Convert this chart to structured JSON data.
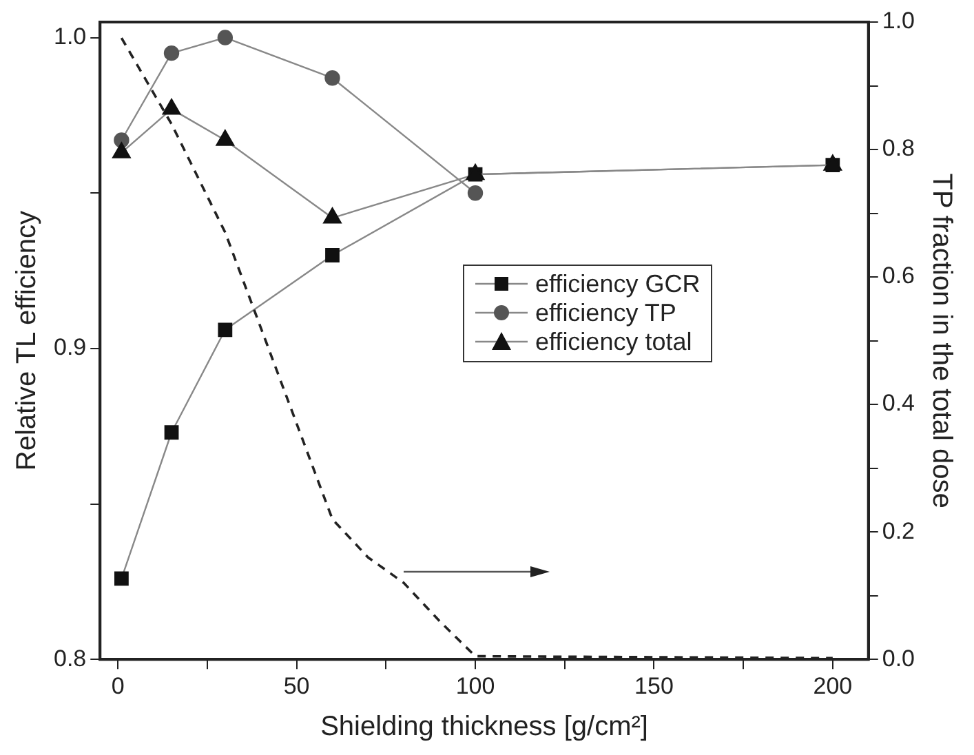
{
  "chart_data": {
    "type": "line",
    "xlabel": "Shielding thickness [g/cm²]",
    "ylabel": "Relative TL efficiency",
    "y2label": "TP fraction in the total dose",
    "xlim": [
      -5,
      210
    ],
    "xticks": [
      0,
      {
        "value": 25,
        "label": null
      },
      50,
      {
        "value": 75,
        "label": null
      },
      100,
      {
        "value": 125,
        "label": null
      },
      150,
      {
        "value": 175,
        "label": null
      },
      200
    ],
    "ylim": [
      0.8,
      1.005
    ],
    "yticks": [
      {
        "value": 0.8,
        "label": "0.8"
      },
      {
        "value": 0.85,
        "label": null
      },
      {
        "value": 0.9,
        "label": "0.9"
      },
      {
        "value": 0.95,
        "label": null
      },
      {
        "value": 1.0,
        "label": "1.0"
      }
    ],
    "y2lim": [
      0,
      1
    ],
    "y2ticks": [
      {
        "value": 0,
        "label": "0.0"
      },
      {
        "value": 0.1,
        "label": null
      },
      {
        "value": 0.2,
        "label": "0.2"
      },
      {
        "value": 0.3,
        "label": null
      },
      {
        "value": 0.4,
        "label": "0.4"
      },
      {
        "value": 0.5,
        "label": null
      },
      {
        "value": 0.6,
        "label": "0.6"
      },
      {
        "value": 0.7,
        "label": null
      },
      {
        "value": 0.8,
        "label": "0.8"
      },
      {
        "value": 0.9,
        "label": null
      },
      {
        "value": 1.0,
        "label": "1.0"
      }
    ],
    "grid": false,
    "legend": "center",
    "series": [
      {
        "name": "efficiency GCR",
        "color": "#111111",
        "marker": "square",
        "x": [
          1,
          15,
          30,
          60,
          100,
          200
        ],
        "values": [
          0.826,
          0.873,
          0.906,
          0.93,
          0.956,
          0.959
        ]
      },
      {
        "name": "efficiency TP",
        "color": "#555555",
        "marker": "circle",
        "x": [
          1,
          15,
          30,
          60,
          100
        ],
        "values": [
          0.967,
          0.995,
          1.0,
          0.987,
          0.95
        ]
      },
      {
        "name": "efficiency total",
        "color": "#111111",
        "marker": "triangle",
        "x": [
          1,
          15,
          30,
          60,
          100,
          200
        ],
        "values": [
          0.963,
          0.977,
          0.967,
          0.942,
          0.956,
          0.959
        ]
      },
      {
        "color": "#222222",
        "marker": "none",
        "line_style": "dashed",
        "axis": "y2",
        "x": [
          1,
          15,
          30,
          40,
          50,
          60,
          70,
          80,
          90,
          100,
          200
        ],
        "values": [
          0.975,
          0.84,
          0.67,
          0.52,
          0.37,
          0.22,
          0.16,
          0.12,
          0.06,
          0.005,
          0.002
        ]
      }
    ]
  }
}
